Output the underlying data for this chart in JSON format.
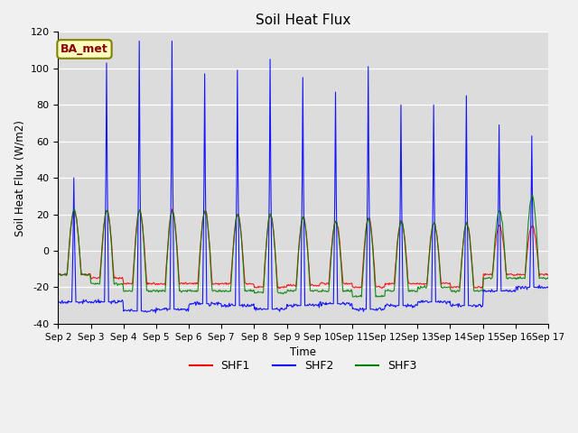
{
  "title": "Soil Heat Flux",
  "ylabel": "Soil Heat Flux (W/m2)",
  "xlabel": "Time",
  "ylim": [
    -40,
    120
  ],
  "plot_bg_color": "#dcdcdc",
  "fig_bg_color": "#f0f0f0",
  "legend_label": "BA_met",
  "series": [
    "SHF1",
    "SHF2",
    "SHF3"
  ],
  "colors": [
    "red",
    "blue",
    "green"
  ],
  "x_tick_labels": [
    "Sep 2",
    "Sep 3",
    "Sep 4",
    "Sep 5",
    "Sep 6",
    "Sep 7",
    "Sep 8",
    "Sep 9",
    "Sep 10",
    "Sep 11",
    "Sep 12",
    "Sep 13",
    "Sep 14",
    "Sep 15",
    "Sep 16",
    "Sep 17"
  ],
  "yticks": [
    -40,
    -20,
    0,
    20,
    40,
    60,
    80,
    100,
    120
  ],
  "peaks_shf2": [
    40,
    103,
    115,
    115,
    97,
    99,
    105,
    95,
    87,
    101,
    80,
    80,
    85,
    69,
    63
  ],
  "peaks_shf1": [
    22,
    22,
    22,
    22,
    22,
    20,
    20,
    18,
    16,
    18,
    16,
    15,
    15,
    14,
    14
  ],
  "peaks_shf3": [
    22,
    22,
    22,
    22,
    22,
    20,
    20,
    18,
    16,
    18,
    16,
    15,
    15,
    22,
    30
  ],
  "night_shf2": [
    -28,
    -28,
    -33,
    -32,
    -29,
    -30,
    -32,
    -30,
    -29,
    -32,
    -30,
    -28,
    -30,
    -22,
    -20
  ],
  "night_shf1": [
    -13,
    -15,
    -18,
    -18,
    -18,
    -18,
    -20,
    -19,
    -18,
    -20,
    -18,
    -18,
    -20,
    -13,
    -13
  ],
  "night_shf3": [
    -13,
    -18,
    -22,
    -22,
    -22,
    -22,
    -23,
    -22,
    -22,
    -25,
    -22,
    -20,
    -22,
    -15,
    -15
  ],
  "n_days": 15,
  "n_per_day": 48
}
